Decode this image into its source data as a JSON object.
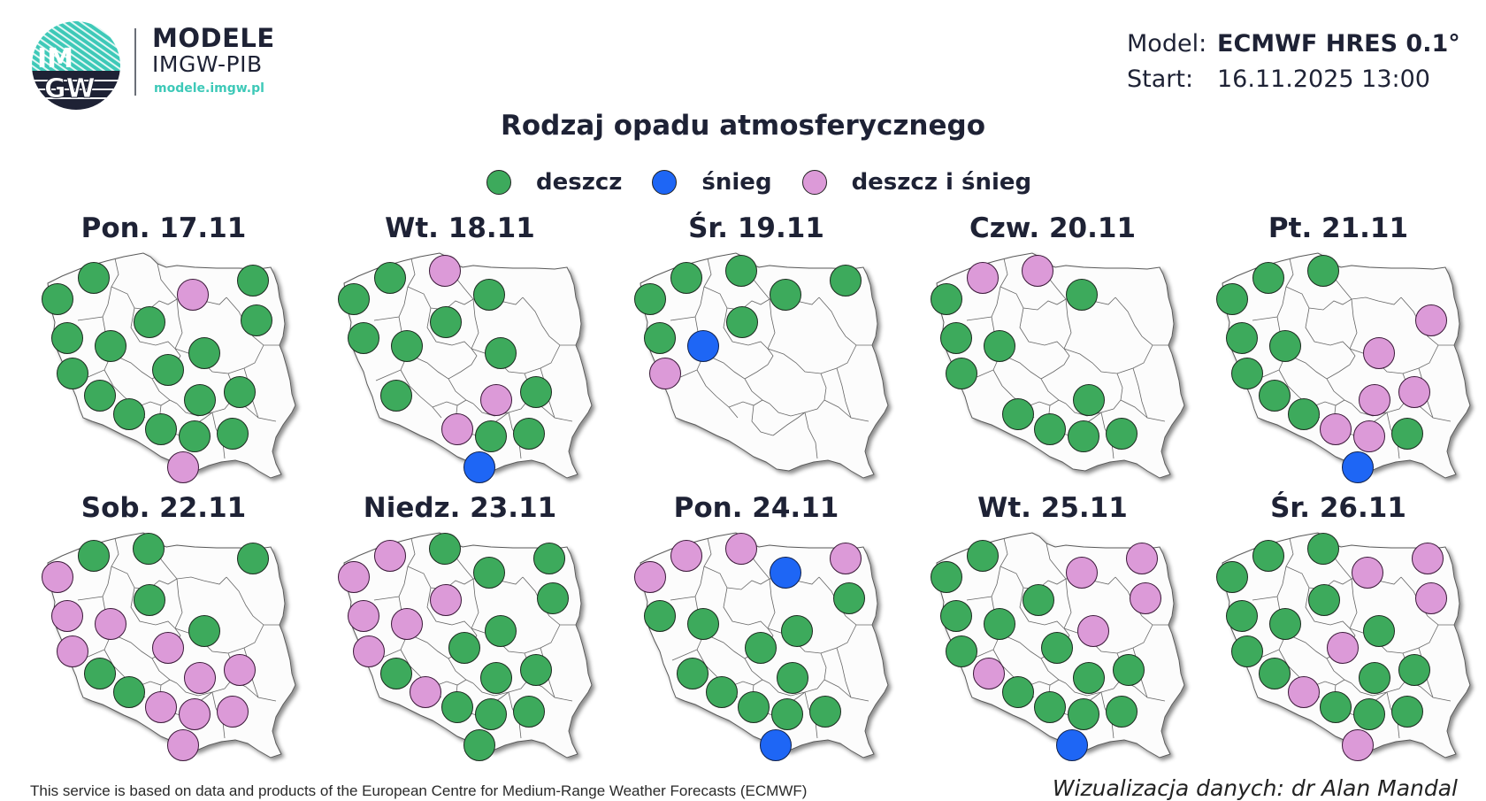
{
  "header": {
    "logo": {
      "circle_text_top": "IM",
      "circle_text_bottom": "GW",
      "title": "MODELE",
      "subtitle": "IMGW-PIB",
      "url": "modele.imgw.pl"
    },
    "model_label": "Model:",
    "model_value": "ECMWF HRES 0.1°",
    "start_label": "Start:",
    "start_value": "16.11.2025 13:00"
  },
  "title": "Rodzaj opadu atmosferycznego",
  "legend": [
    {
      "key": "rain",
      "label": "deszcz",
      "color": "#3daa5c"
    },
    {
      "key": "snow",
      "label": "śnieg",
      "color": "#1e66f5"
    },
    {
      "key": "mix",
      "label": "deszcz i śnieg",
      "color": "#dc9ad8"
    }
  ],
  "colors": {
    "rain": "#3daa5c",
    "snow": "#1e66f5",
    "mix": "#dc9ad8",
    "text": "#1e2235",
    "brand_teal": "#3ec9b8"
  },
  "footer": {
    "left": "This service is based on data and products of the European Centre for Medium-Range Weather Forecasts (ECMWF)",
    "right": "Wizualizacja danych: dr Alan Mandal"
  },
  "chart_data": {
    "type": "map_symbols",
    "title": "Rodzaj opadu atmosferycznego",
    "legend": [
      "deszcz",
      "śnieg",
      "deszcz i śnieg"
    ],
    "slots": {
      "s1": [
        35,
        98
      ],
      "s2": [
        76,
        74
      ],
      "s3": [
        138,
        66
      ],
      "s4": [
        188,
        93
      ],
      "s5": [
        256,
        77
      ],
      "s6": [
        46,
        142
      ],
      "s7": [
        95,
        151
      ],
      "s8": [
        139,
        124
      ],
      "s9": [
        260,
        122
      ],
      "s10": [
        52,
        182
      ],
      "s11": [
        160,
        178
      ],
      "s12": [
        201,
        159
      ],
      "s13": [
        83,
        207
      ],
      "s14": [
        196,
        212
      ],
      "s15": [
        241,
        203
      ],
      "s16": [
        116,
        228
      ],
      "s17": [
        152,
        245
      ],
      "s18": [
        190,
        253
      ],
      "s19": [
        233,
        250
      ],
      "s20": [
        177,
        288
      ]
    },
    "days": [
      {
        "label": "Pon. 17.11",
        "points": {
          "s1": "rain",
          "s2": "rain",
          "s4": "mix",
          "s5": "rain",
          "s6": "rain",
          "s7": "rain",
          "s8": "rain",
          "s9": "rain",
          "s10": "rain",
          "s11": "rain",
          "s12": "rain",
          "s13": "rain",
          "s14": "rain",
          "s15": "rain",
          "s16": "rain",
          "s17": "rain",
          "s18": "rain",
          "s19": "rain",
          "s20": "mix"
        }
      },
      {
        "label": "Wt. 18.11",
        "points": {
          "s1": "rain",
          "s2": "rain",
          "s3": "mix",
          "s4": "rain",
          "s6": "rain",
          "s7": "rain",
          "s8": "rain",
          "s12": "rain",
          "s13": "rain",
          "s14": "mix",
          "s15": "rain",
          "s17": "mix",
          "s18": "rain",
          "s19": "rain",
          "s20": "snow"
        }
      },
      {
        "label": "Śr. 19.11",
        "points": {
          "s1": "rain",
          "s2": "rain",
          "s3": "rain",
          "s4": "rain",
          "s5": "rain",
          "s6": "rain",
          "s7": "snow",
          "s8": "rain",
          "s10": "mix"
        }
      },
      {
        "label": "Czw. 20.11",
        "points": {
          "s1": "rain",
          "s2": "mix",
          "s3": "mix",
          "s4": "rain",
          "s6": "rain",
          "s7": "rain",
          "s10": "rain",
          "s14": "rain",
          "s16": "rain",
          "s17": "rain",
          "s18": "rain",
          "s19": "rain"
        }
      },
      {
        "label": "Pt. 21.11",
        "points": {
          "s1": "rain",
          "s2": "rain",
          "s3": "rain",
          "s9": "mix",
          "s6": "rain",
          "s7": "rain",
          "s10": "rain",
          "s12": "mix",
          "s13": "rain",
          "s14": "mix",
          "s15": "mix",
          "s16": "rain",
          "s17": "mix",
          "s18": "mix",
          "s19": "rain",
          "s20": "snow"
        }
      },
      {
        "label": "Sob. 22.11",
        "points": {
          "s1": "mix",
          "s2": "rain",
          "s3": "rain",
          "s5": "rain",
          "s6": "mix",
          "s7": "mix",
          "s8": "rain",
          "s10": "mix",
          "s11": "mix",
          "s12": "rain",
          "s13": "rain",
          "s14": "mix",
          "s15": "mix",
          "s16": "rain",
          "s17": "mix",
          "s18": "mix",
          "s19": "mix",
          "s20": "mix"
        }
      },
      {
        "label": "Niedz. 23.11",
        "points": {
          "s1": "mix",
          "s2": "mix",
          "s3": "rain",
          "s4": "rain",
          "s5": "rain",
          "s6": "mix",
          "s7": "mix",
          "s8": "mix",
          "s9": "rain",
          "s10": "mix",
          "s11": "rain",
          "s12": "rain",
          "s13": "rain",
          "s14": "rain",
          "s15": "rain",
          "s16": "mix",
          "s17": "rain",
          "s18": "rain",
          "s19": "rain",
          "s20": "rain"
        }
      },
      {
        "label": "Pon. 24.11",
        "points": {
          "s1": "mix",
          "s2": "mix",
          "s3": "mix",
          "s4": "snow",
          "s5": "mix",
          "s6": "rain",
          "s7": "rain",
          "s9": "rain",
          "s11": "rain",
          "s12": "rain",
          "s13": "rain",
          "s14": "rain",
          "s16": "rain",
          "s17": "rain",
          "s18": "rain",
          "s19": "rain",
          "s20": "snow"
        }
      },
      {
        "label": "Wt. 25.11",
        "points": {
          "s1": "rain",
          "s2": "rain",
          "s4": "mix",
          "s5": "mix",
          "s6": "rain",
          "s7": "rain",
          "s8": "rain",
          "s9": "mix",
          "s10": "rain",
          "s11": "rain",
          "s12": "mix",
          "s13": "mix",
          "s14": "rain",
          "s15": "rain",
          "s16": "rain",
          "s17": "rain",
          "s18": "rain",
          "s19": "rain",
          "s20": "snow"
        }
      },
      {
        "label": "Śr. 26.11",
        "points": {
          "s1": "rain",
          "s2": "rain",
          "s3": "rain",
          "s4": "mix",
          "s5": "mix",
          "s6": "rain",
          "s7": "rain",
          "s8": "rain",
          "s9": "mix",
          "s10": "rain",
          "s11": "mix",
          "s12": "rain",
          "s13": "rain",
          "s14": "rain",
          "s15": "rain",
          "s16": "mix",
          "s17": "rain",
          "s18": "rain",
          "s19": "rain",
          "s20": "mix"
        }
      }
    ]
  }
}
